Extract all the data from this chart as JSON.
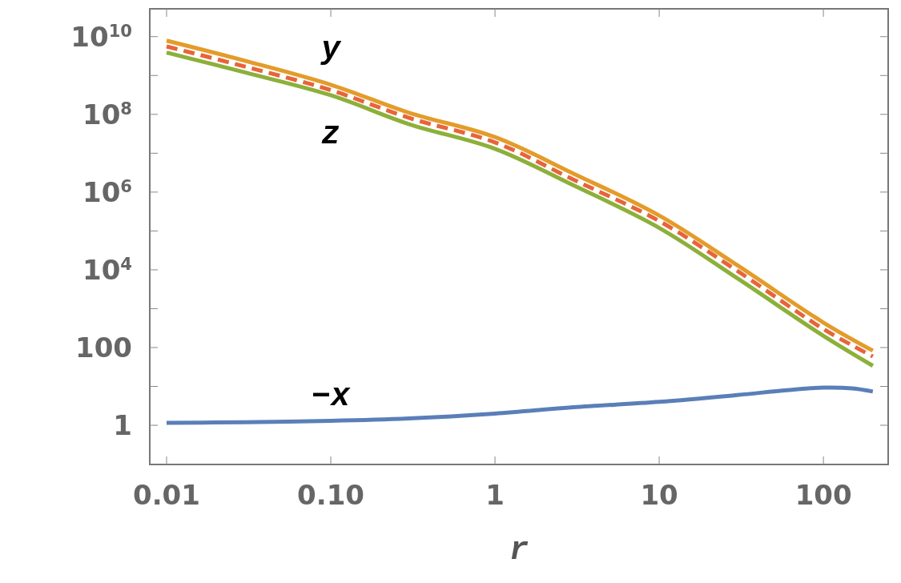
{
  "chart_data": {
    "type": "line",
    "xlabel": "r",
    "log": "xy",
    "grid": false,
    "marker": "none",
    "xlim": [
      0.0079,
      248
    ],
    "ylim": [
      0.098,
      52000000000.0
    ],
    "xticks": [
      0.01,
      {
        "value": 0.1,
        "label": "0.10"
      },
      1,
      10,
      100
    ],
    "yticks": [
      1,
      {
        "value": 10,
        "label": null
      },
      100,
      {
        "value": 1000,
        "label": null
      },
      {
        "value": 10000,
        "label": "10$^{4}$"
      },
      {
        "value": 100000,
        "label": null
      },
      {
        "value": 1000000,
        "label": "10$^{6}$"
      },
      {
        "value": 10000000,
        "label": null
      },
      {
        "value": 100000000,
        "label": "10$^{8}$"
      },
      {
        "value": 1000000000,
        "label": null
      },
      {
        "value": 10000000000,
        "label": "10$^{10}$"
      }
    ],
    "x": [
      0.01,
      0.03,
      0.1,
      0.3,
      1,
      3,
      10,
      30,
      100,
      200
    ],
    "series": [
      {
        "name": "y",
        "color": "#e39c2a",
        "line_style": "solid",
        "values": [
          7900000000.0,
          2400000000.0,
          580000000.0,
          110000000.0,
          26000000.0,
          3000000.0,
          250000.0,
          13000,
          440,
          83
        ]
      },
      {
        "color": "#e8643a",
        "line_style": "dashed",
        "values": [
          5600000000.0,
          1700000000.0,
          420000000.0,
          81000000.0,
          19000000.0,
          2100000.0,
          180000.0,
          9300,
          300,
          59
        ]
      },
      {
        "name": "z",
        "color": "#8cb03a",
        "line_style": "solid",
        "values": [
          3900000000.0,
          1200000000.0,
          310000000.0,
          56000000.0,
          13000000.0,
          1500000.0,
          120000.0,
          6000,
          200,
          34
        ]
      },
      {
        "name": "−x",
        "color": "#5a7fb8",
        "line_style": "solid",
        "x": [
          0.01,
          0.03,
          0.1,
          0.3,
          1,
          3,
          10,
          30,
          60,
          100,
          150,
          200
        ],
        "values": [
          1.15,
          1.2,
          1.3,
          1.5,
          2.0,
          2.9,
          4.0,
          6.0,
          8.0,
          9.3,
          8.9,
          7.4
        ]
      }
    ]
  }
}
